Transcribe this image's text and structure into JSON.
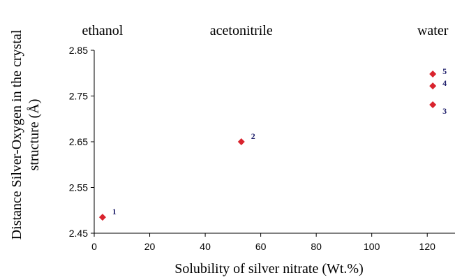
{
  "chart_data": {
    "type": "scatter",
    "title": "",
    "xlabel": "Solubility of silver nitrate (Wt.%)",
    "ylabel_lines": [
      "Distance Silver-Oxygen in the crystal",
      "structure (Å)"
    ],
    "xlim": [
      0,
      130
    ],
    "ylim": [
      2.45,
      2.85
    ],
    "x_ticks": [
      "0",
      "20",
      "40",
      "60",
      "80",
      "100",
      "120"
    ],
    "y_ticks": [
      "2.45",
      "2.55",
      "2.65",
      "2.75",
      "2.85"
    ],
    "grid": false,
    "point_color": "#d9232d",
    "points": [
      {
        "label": "1",
        "x": 3,
        "y": 2.485
      },
      {
        "label": "2",
        "x": 53,
        "y": 2.65
      },
      {
        "label": "3",
        "x": 122,
        "y": 2.731
      },
      {
        "label": "4",
        "x": 122,
        "y": 2.772
      },
      {
        "label": "5",
        "x": 122,
        "y": 2.798
      }
    ],
    "group_labels": [
      {
        "text": "ethanol",
        "x": 3
      },
      {
        "text": "acetonitrile",
        "x": 53
      },
      {
        "text": "water",
        "x": 122
      }
    ]
  }
}
